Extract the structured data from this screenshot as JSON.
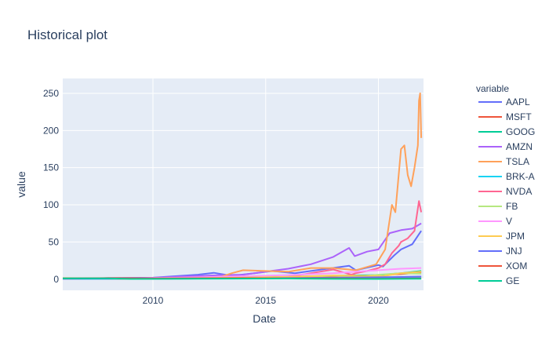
{
  "chart_data": {
    "type": "line",
    "title": "Historical plot",
    "xlabel": "Date",
    "ylabel": "value",
    "xlim": [
      2006,
      2022
    ],
    "ylim": [
      -15,
      270
    ],
    "x_ticks": [
      2010,
      2015,
      2020
    ],
    "x_tick_labels": [
      "2010",
      "2015",
      "2020"
    ],
    "y_ticks": [
      0,
      50,
      100,
      150,
      200,
      250
    ],
    "y_tick_labels": [
      "0",
      "50",
      "100",
      "150",
      "200",
      "250"
    ],
    "grid": true,
    "legend_title": "variable",
    "legend_position": "right",
    "series": [
      {
        "name": "AAPL",
        "color": "#636efa",
        "x": [
          2006,
          2008,
          2010,
          2012,
          2012.7,
          2013.5,
          2014.5,
          2015.3,
          2016.3,
          2017,
          2018.7,
          2019,
          2020,
          2020.2,
          2020.7,
          2021,
          2021.5,
          2021.9
        ],
        "y": [
          0.5,
          1.5,
          2,
          6,
          8.5,
          4.5,
          8,
          11,
          8,
          11,
          18,
          12,
          19,
          17,
          32,
          40,
          47,
          65
        ]
      },
      {
        "name": "MSFT",
        "color": "#EF553B",
        "x": [
          2006,
          2009,
          2012,
          2015,
          2018,
          2020,
          2021,
          2021.9
        ],
        "y": [
          0.5,
          0.3,
          1,
          1.8,
          3.5,
          5.5,
          7,
          9
        ]
      },
      {
        "name": "GOOG",
        "color": "#00cc96",
        "x": [
          2006,
          2009,
          2012,
          2015,
          2018,
          2020,
          2021,
          2021.9
        ],
        "y": [
          1,
          0.8,
          1.5,
          2.5,
          4.5,
          5.5,
          8,
          11
        ]
      },
      {
        "name": "AMZN",
        "color": "#ab63fa",
        "x": [
          2006,
          2008,
          2009,
          2011,
          2013,
          2014,
          2015,
          2016,
          2017,
          2018,
          2018.7,
          2018.95,
          2019.5,
          2020,
          2020.5,
          2021,
          2021.5,
          2021.9
        ],
        "y": [
          0.5,
          1.2,
          0.5,
          3,
          5.5,
          6,
          10,
          14,
          20,
          30,
          42,
          31,
          37,
          40,
          62,
          66,
          68,
          75
        ]
      },
      {
        "name": "TSLA",
        "color": "#FFA15A",
        "x": [
          2010.5,
          2012,
          2013,
          2013.5,
          2014,
          2015,
          2016,
          2017,
          2018,
          2019,
          2019.9,
          2020.3,
          2020.6,
          2020.75,
          2021,
          2021.15,
          2021.3,
          2021.45,
          2021.6,
          2021.75,
          2021.8,
          2021.85,
          2021.9
        ],
        "y": [
          1.5,
          2,
          3,
          8,
          12,
          11,
          10,
          15,
          15,
          12,
          20,
          40,
          100,
          90,
          175,
          180,
          140,
          125,
          150,
          180,
          240,
          250,
          190
        ]
      },
      {
        "name": "BRK-A",
        "color": "#19d3f3",
        "x": [
          2006,
          2010,
          2014,
          2018,
          2020,
          2021.9
        ],
        "y": [
          0.3,
          0.5,
          1,
          1.8,
          2,
          3
        ]
      },
      {
        "name": "NVDA",
        "color": "#FF6692",
        "x": [
          2006,
          2008,
          2009,
          2012,
          2015,
          2016,
          2017,
          2018,
          2018.8,
          2019,
          2019.5,
          2020,
          2020.3,
          2020.6,
          2020.9,
          2021,
          2021.3,
          2021.6,
          2021.8,
          2021.9
        ],
        "y": [
          0.5,
          1,
          0.3,
          0.8,
          1.5,
          3,
          8,
          13,
          6,
          8,
          11,
          15,
          20,
          35,
          45,
          50,
          55,
          65,
          105,
          90
        ]
      },
      {
        "name": "FB",
        "color": "#B6E880",
        "x": [
          2012.4,
          2013,
          2014,
          2016,
          2018,
          2018.9,
          2020,
          2021,
          2021.9
        ],
        "y": [
          1,
          0.8,
          1.5,
          2.5,
          4.5,
          3,
          6,
          8,
          7.5
        ]
      },
      {
        "name": "V",
        "color": "#FF97FF",
        "x": [
          2008.2,
          2010,
          2012,
          2014,
          2016,
          2018,
          2019,
          2020,
          2021,
          2021.9
        ],
        "y": [
          1,
          1.5,
          2.5,
          4,
          5.5,
          8,
          10,
          12,
          14,
          15
        ]
      },
      {
        "name": "JPM",
        "color": "#FECB52",
        "x": [
          2006,
          2008,
          2009,
          2011,
          2014,
          2016,
          2018,
          2020.2,
          2021,
          2021.9
        ],
        "y": [
          1.5,
          1,
          0.5,
          1.2,
          2,
          3,
          5,
          4,
          8,
          10
        ]
      },
      {
        "name": "JNJ",
        "color": "#636efa",
        "x": [
          2006,
          2010,
          2014,
          2018,
          2020,
          2021.9
        ],
        "y": [
          0.5,
          0.8,
          1.2,
          2,
          2.5,
          3.5
        ]
      },
      {
        "name": "XOM",
        "color": "#EF553B",
        "x": [
          2006,
          2008,
          2010,
          2014,
          2016,
          2018,
          2020.3,
          2021,
          2021.9
        ],
        "y": [
          1,
          1.5,
          1,
          1.5,
          1.2,
          1,
          0.5,
          0.8,
          1
        ]
      },
      {
        "name": "GE",
        "color": "#00cc96",
        "x": [
          2006,
          2008,
          2009,
          2012,
          2016,
          2018,
          2020,
          2021.9
        ],
        "y": [
          1,
          1.2,
          0.3,
          0.6,
          0.8,
          0.4,
          0.3,
          0.5
        ]
      }
    ]
  }
}
